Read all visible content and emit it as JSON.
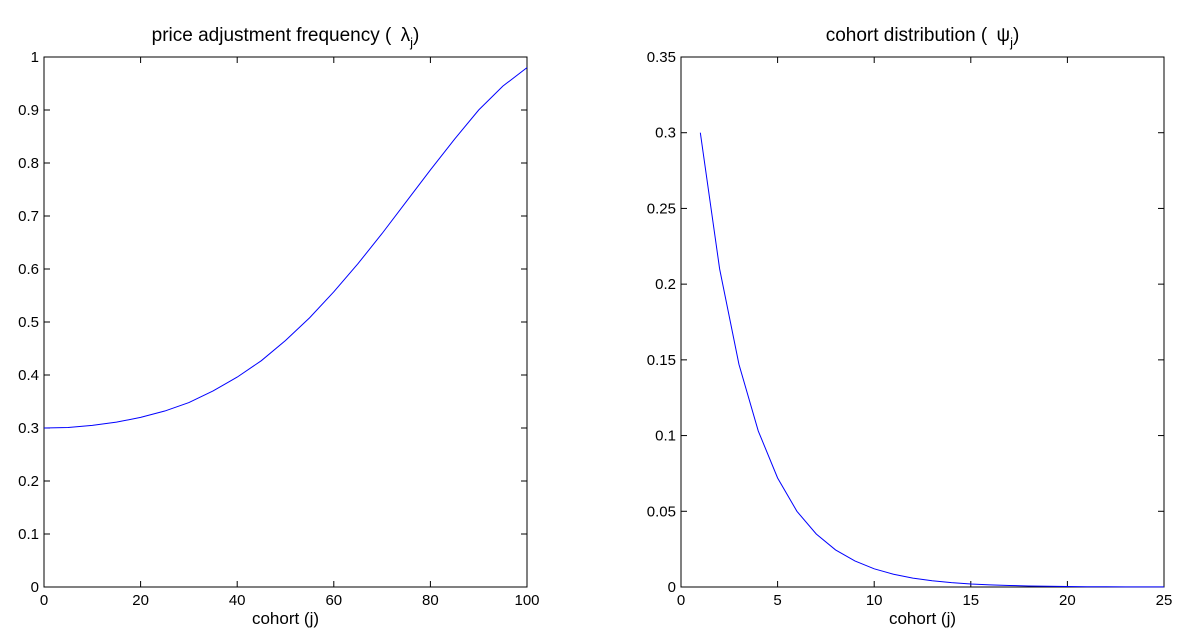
{
  "chart_data": [
    {
      "type": "line",
      "title_main": "price adjustment frequency ( ",
      "title_symbol": "λ",
      "title_sub": "j",
      "title_close": ")",
      "xlabel": "cohort (j)",
      "ylabel": "",
      "xlim": [
        0,
        100
      ],
      "ylim": [
        0,
        1
      ],
      "xticks": [
        0,
        20,
        40,
        60,
        80,
        100
      ],
      "xtick_labels": [
        "0",
        "20",
        "40",
        "60",
        "80",
        "100"
      ],
      "yticks": [
        0,
        0.1,
        0.2,
        0.3,
        0.4,
        0.5,
        0.6,
        0.7,
        0.8,
        0.9,
        1
      ],
      "ytick_labels": [
        "0",
        "0.1",
        "0.2",
        "0.3",
        "0.4",
        "0.5",
        "0.6",
        "0.7",
        "0.8",
        "0.9",
        "1"
      ],
      "grid": false,
      "line_color": "#0000ff",
      "series": [
        {
          "x": [
            0,
            5,
            10,
            15,
            20,
            25,
            30,
            35,
            40,
            45,
            50,
            55,
            60,
            65,
            70,
            75,
            80,
            85,
            90,
            95,
            100
          ],
          "y": [
            0.3,
            0.301,
            0.305,
            0.311,
            0.32,
            0.332,
            0.348,
            0.37,
            0.396,
            0.427,
            0.465,
            0.508,
            0.557,
            0.61,
            0.667,
            0.727,
            0.787,
            0.845,
            0.9,
            0.945,
            0.98
          ]
        }
      ]
    },
    {
      "type": "line",
      "title_main": "cohort distribution ( ",
      "title_symbol": "ψ",
      "title_sub": "j",
      "title_close": ")",
      "xlabel": "cohort (j)",
      "ylabel": "",
      "xlim": [
        0,
        25
      ],
      "ylim": [
        0,
        0.35
      ],
      "xticks": [
        0,
        5,
        10,
        15,
        20,
        25
      ],
      "xtick_labels": [
        "0",
        "5",
        "10",
        "15",
        "20",
        "25"
      ],
      "yticks": [
        0,
        0.05,
        0.1,
        0.15,
        0.2,
        0.25,
        0.3,
        0.35
      ],
      "ytick_labels": [
        "0",
        "0.05",
        "0.1",
        "0.15",
        "0.2",
        "0.25",
        "0.3",
        "0.35"
      ],
      "grid": false,
      "line_color": "#0000ff",
      "series": [
        {
          "x": [
            1,
            2,
            3,
            4,
            5,
            6,
            7,
            8,
            9,
            10,
            11,
            12,
            13,
            14,
            15,
            16,
            17,
            18,
            19,
            20,
            21,
            22,
            23,
            24,
            25
          ],
          "y": [
            0.3,
            0.21,
            0.147,
            0.103,
            0.072,
            0.05,
            0.035,
            0.0245,
            0.0172,
            0.012,
            0.0084,
            0.0059,
            0.0041,
            0.0029,
            0.002,
            0.0014,
            0.001,
            0.0007,
            0.0005,
            0.0003,
            0.0002,
            0.00015,
            0.0001,
            7e-05,
            5e-05
          ]
        }
      ]
    }
  ]
}
